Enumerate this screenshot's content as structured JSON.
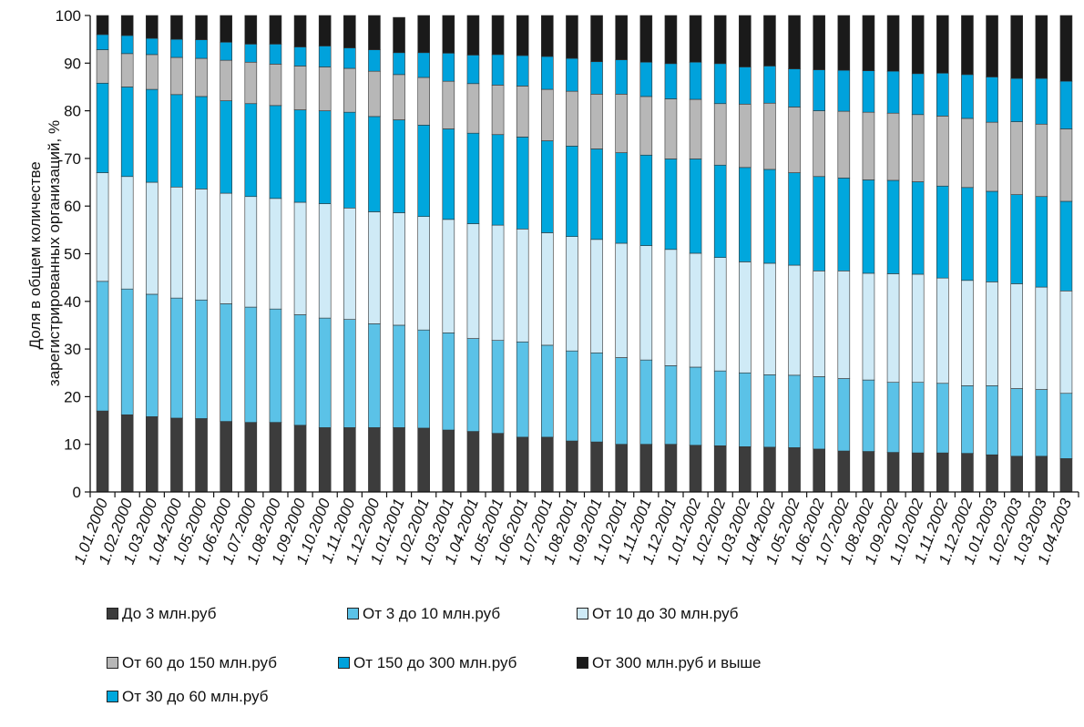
{
  "chart_data": {
    "type": "bar",
    "stacked": true,
    "ylabel": "Доля в общем количестве зарегистрированных организаций, %",
    "ylabel_lines": [
      "Доля в общем количестве",
      "зарегистрированных организаций, %"
    ],
    "ylim": [
      0,
      100
    ],
    "yticks": [
      0,
      10,
      20,
      30,
      40,
      50,
      60,
      70,
      80,
      90,
      100
    ],
    "categories": [
      "1.01.2000",
      "1.02.2000",
      "1.03.2000",
      "1.04.2000",
      "1.05.2000",
      "1.06.2000",
      "1.07.2000",
      "1.08.2000",
      "1.09.2000",
      "1.10.2000",
      "1.11.2000",
      "1.12.2000",
      "1.01.2001",
      "1.02.2001",
      "1.03.2001",
      "1.04.2001",
      "1.05.2001",
      "1.06.2001",
      "1.07.2001",
      "1.08.2001",
      "1.09.2001",
      "1.10.2001",
      "1.11.2001",
      "1.12.2001",
      "1.01.2002",
      "1.02.2002",
      "1.03.2002",
      "1.04.2002",
      "1.05.2002",
      "1.06.2002",
      "1.07.2002",
      "1.08.2002",
      "1.09.2002",
      "1.10.2002",
      "1.11.2002",
      "1.12.2002",
      "1.01.2003",
      "1.02.2003",
      "1.03.2003",
      "1.04.2003"
    ],
    "series": [
      {
        "name": "До 3 млн.руб",
        "color": "#3c3c3c",
        "values": [
          17,
          16.2,
          15.8,
          15.5,
          15.4,
          14.8,
          14.6,
          14.6,
          14,
          13.5,
          13.5,
          13.5,
          13.5,
          13.4,
          13,
          12.7,
          12.3,
          11.5,
          11.5,
          10.7,
          10.5,
          10,
          10,
          10,
          9.8,
          9.7,
          9.5,
          9.4,
          9.3,
          9,
          8.6,
          8.5,
          8.3,
          8.2,
          8.2,
          8.1,
          7.8,
          7.5,
          7.5,
          7
        ]
      },
      {
        "name": "От 3 до 10 млн.руб",
        "color": "#5bc2e7",
        "values": [
          27.2,
          26.4,
          25.7,
          25.2,
          24.9,
          24.7,
          24.2,
          23.8,
          23.2,
          23,
          22.7,
          21.8,
          21.5,
          20.6,
          20.4,
          19.5,
          19.5,
          20,
          19.3,
          18.9,
          18.7,
          18.2,
          17.7,
          16.5,
          16.4,
          15.7,
          15.5,
          15.2,
          15.2,
          15.2,
          15.2,
          15,
          14.7,
          14.8,
          14.6,
          14.2,
          14.5,
          14.2,
          14,
          13.7
        ]
      },
      {
        "name": "От 10 до 30 млн.руб",
        "color": "#cfeaf6",
        "values": [
          22.8,
          23.6,
          23.5,
          23.3,
          23.3,
          23.2,
          23.2,
          23.2,
          23.6,
          24,
          23.4,
          23.5,
          23.6,
          23.8,
          23.8,
          24.1,
          24.2,
          23.7,
          23.6,
          24,
          23.8,
          24,
          24,
          24.4,
          23.9,
          23.8,
          23.3,
          23.4,
          23.1,
          22.2,
          22.6,
          22.4,
          22.8,
          22.7,
          22.1,
          22.1,
          21.8,
          22,
          21.5,
          21.5
        ]
      },
      {
        "name": "От 30  до 60 млн.руб",
        "color": "#00a7dd",
        "values": [
          18.8,
          18.8,
          19.5,
          19.4,
          19.4,
          19.4,
          19.5,
          19.5,
          19.4,
          19.5,
          20.1,
          20,
          19.5,
          19.2,
          19,
          19,
          19,
          19.3,
          19.3,
          19,
          19,
          19,
          19,
          19,
          19.8,
          19.4,
          19.8,
          19.7,
          19.4,
          19.8,
          19.5,
          19.6,
          19.6,
          19.4,
          19.3,
          19.5,
          19,
          18.7,
          19,
          18.8
        ]
      },
      {
        "name": "От 60  до 150 млн.руб",
        "color": "#b7b7b7",
        "values": [
          7,
          7,
          7.3,
          7.8,
          8,
          8.5,
          8.7,
          8.7,
          9.2,
          9.2,
          9.2,
          9.5,
          9.5,
          10,
          10,
          10.4,
          10.4,
          10.7,
          10.8,
          11.5,
          11.5,
          12.3,
          12.3,
          12.6,
          12.5,
          12.9,
          13.3,
          13.9,
          13.8,
          13.8,
          14,
          14.2,
          14.1,
          14.1,
          14.7,
          14.5,
          14.5,
          15.3,
          15.2,
          15.2
        ]
      },
      {
        "name": "От 150 до 300 млн.руб",
        "color": "#00a2dc",
        "values": [
          3.2,
          3.8,
          3.4,
          3.8,
          3.9,
          3.8,
          3.8,
          4.2,
          4,
          4.4,
          4.3,
          4.5,
          4.6,
          5.2,
          5.9,
          6,
          6.4,
          6.4,
          6.9,
          6.9,
          6.8,
          7.2,
          7.2,
          7.4,
          7.8,
          8.4,
          7.8,
          7.8,
          8,
          8.6,
          8.6,
          8.7,
          8.8,
          8.6,
          9,
          9.2,
          9.5,
          9.1,
          9.6,
          10
        ]
      },
      {
        "name": "От 300 млн.руб и выше",
        "color": "#1a1a1a",
        "values": [
          4,
          4.2,
          4.8,
          5,
          5.1,
          5.6,
          6,
          6,
          6.6,
          6.4,
          6.8,
          7.2,
          7.4,
          7.8,
          7.9,
          8.3,
          8.2,
          8.4,
          8.6,
          9,
          9.7,
          9.3,
          9.8,
          10.1,
          9.8,
          10.1,
          10.8,
          10.6,
          11.2,
          11.4,
          11.5,
          11.6,
          11.7,
          12.2,
          12.1,
          12.4,
          12.9,
          13.2,
          13.2,
          13.8
        ]
      }
    ],
    "legend_order": [
      0,
      1,
      2,
      4,
      5,
      6,
      3
    ],
    "grid": false,
    "legend_position": "bottom"
  }
}
